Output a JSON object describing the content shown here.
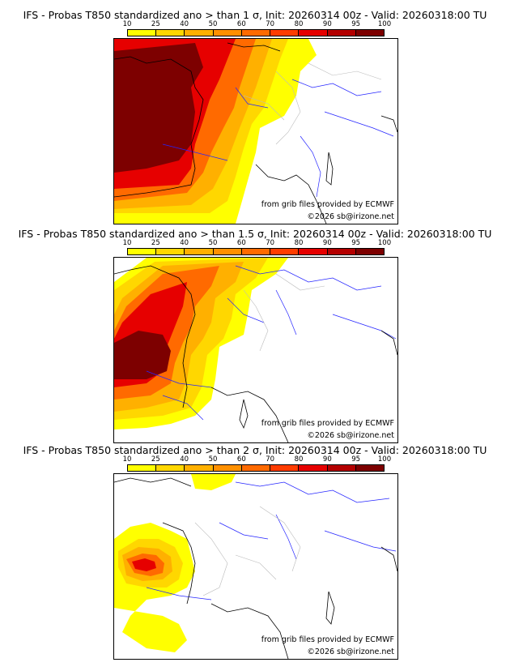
{
  "panels": [
    {
      "title": "IFS - Probas T850  standardized ano > than 1 σ, Init: 20260314 00z - Valid: 20260318:00 TU",
      "source_note": "from grib files provided by ECMWF",
      "copyright": "©2026 sb@irizone.net"
    },
    {
      "title": "IFS - Probas T850  standardized ano > than 1.5 σ, Init: 20260314 00z - Valid: 20260318:00 TU",
      "source_note": "from grib files provided by ECMWF",
      "copyright": "©2026 sb@irizone.net"
    },
    {
      "title": "IFS - Probas T850  standardized ano > than 2 σ, Init: 20260314 00z - Valid: 20260318:00 TU",
      "source_note": "from grib files provided by ECMWF",
      "copyright": "©2026 sb@irizone.net"
    }
  ],
  "colorbar": {
    "ticks": [
      "10",
      "25",
      "40",
      "50",
      "60",
      "70",
      "80",
      "90",
      "95",
      "100"
    ],
    "colors": [
      "#ffff00",
      "#ffd700",
      "#ffb000",
      "#ff9000",
      "#ff6a00",
      "#ff3c00",
      "#e60000",
      "#b40000",
      "#7d0000"
    ]
  }
}
